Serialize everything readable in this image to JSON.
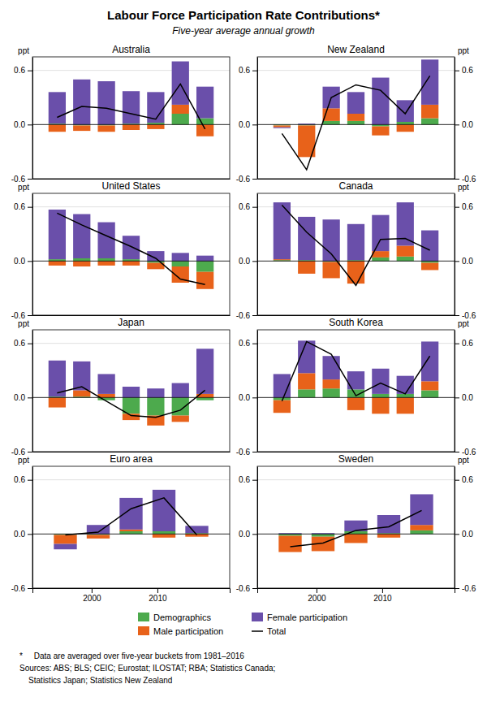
{
  "title": "Labour Force Participation Rate Contributions*",
  "subtitle": "Five-year average annual growth",
  "annotations": [
    "*     Data are averaged over five-year buckets from 1981–2016",
    "Sources: ABS; BLS; CEIC; Eurostat; ILOSTAT; RBA; Statistics Canada;",
    "    Statistics Japan; Statistics New Zealand"
  ],
  "chart_data": [
    {
      "type": "bar",
      "title": "Australia",
      "stacked": true,
      "grid": true,
      "tick_labels": "y",
      "legend": "bottom",
      "ylabel": "ppt",
      "x": [
        1986,
        1991,
        1996,
        2001,
        2006,
        2011,
        2016
      ],
      "xlim": [
        1981,
        2021
      ],
      "xticks": [
        1990,
        2000,
        2010
      ],
      "ylim": [
        -0.6,
        0.75
      ],
      "yticks": [
        -0.6,
        {
          "value": 0,
          "label": "0.0"
        },
        0.6
      ],
      "series": [
        {
          "name": "Demographics",
          "type": "bar",
          "color": "#4daa4d",
          "values": [
            0.01,
            -0.01,
            -0.01,
            0.01,
            0.02,
            0.12,
            0.07
          ]
        },
        {
          "name": "Male participation",
          "type": "bar",
          "color": "#e8621a",
          "values": [
            -0.08,
            -0.06,
            -0.07,
            -0.06,
            -0.05,
            0.1,
            -0.13
          ]
        },
        {
          "name": "Female participation",
          "type": "bar",
          "color": "#6a4faa",
          "values": [
            0.35,
            0.5,
            0.48,
            0.36,
            0.34,
            0.48,
            0.35
          ]
        },
        {
          "name": "Total",
          "type": "line",
          "color": "#000000",
          "values": [
            0.08,
            0.2,
            0.18,
            0.12,
            0.06,
            0.45,
            -0.05
          ]
        }
      ]
    },
    {
      "type": "bar",
      "title": "New Zealand",
      "stacked": true,
      "grid": true,
      "tick_labels": "y",
      "y2label": "ppt",
      "x": [
        1986,
        1991,
        1996,
        2001,
        2006,
        2011,
        2016
      ],
      "xlim": [
        1981,
        2021
      ],
      "xticks": [
        1990,
        2000,
        2010
      ],
      "ylim": [
        -0.6,
        0.75
      ],
      "yticks": [
        -0.6,
        {
          "value": 0,
          "label": "0.0"
        },
        0.6
      ],
      "y2lim": [
        -0.6,
        0.75
      ],
      "y2ticks": [
        -0.6,
        {
          "value": 0,
          "label": "0.0"
        },
        0.6
      ],
      "series": [
        {
          "name": "Demographics",
          "type": "bar",
          "color": "#4daa4d",
          "values": [
            -0.01,
            -0.01,
            0.04,
            0.04,
            -0.02,
            0.03,
            0.07
          ]
        },
        {
          "name": "Male participation",
          "type": "bar",
          "color": "#e8621a",
          "values": [
            -0.02,
            -0.35,
            0.14,
            0.08,
            -0.1,
            -0.08,
            0.15
          ]
        },
        {
          "name": "Female participation",
          "type": "bar",
          "color": "#6a4faa",
          "values": [
            -0.01,
            0.01,
            0.24,
            0.24,
            0.52,
            0.24,
            0.5
          ]
        },
        {
          "name": "Total",
          "type": "line",
          "color": "#000000",
          "values": [
            -0.1,
            -0.5,
            0.3,
            0.44,
            0.38,
            0.12,
            0.54
          ]
        }
      ]
    },
    {
      "type": "bar",
      "title": "United States",
      "stacked": true,
      "grid": true,
      "tick_labels": "y",
      "ylabel": "ppt",
      "x": [
        1986,
        1991,
        1996,
        2001,
        2006,
        2011,
        2016
      ],
      "xlim": [
        1981,
        2021
      ],
      "xticks": [
        1990,
        2000,
        2010
      ],
      "ylim": [
        -0.6,
        0.75
      ],
      "yticks": [
        -0.6,
        {
          "value": 0,
          "label": "0.0"
        },
        0.6
      ],
      "series": [
        {
          "name": "Demographics",
          "type": "bar",
          "color": "#4daa4d",
          "values": [
            0.02,
            0.03,
            0.03,
            0.02,
            -0.02,
            -0.06,
            -0.12
          ]
        },
        {
          "name": "Male participation",
          "type": "bar",
          "color": "#e8621a",
          "values": [
            -0.05,
            -0.06,
            -0.05,
            -0.05,
            -0.07,
            -0.18,
            -0.19
          ]
        },
        {
          "name": "Female participation",
          "type": "bar",
          "color": "#6a4faa",
          "values": [
            0.55,
            0.49,
            0.4,
            0.26,
            0.11,
            0.09,
            0.06
          ]
        },
        {
          "name": "Total",
          "type": "line",
          "color": "#000000",
          "values": [
            0.53,
            0.4,
            0.28,
            0.16,
            0.03,
            -0.2,
            -0.26
          ]
        }
      ]
    },
    {
      "type": "bar",
      "title": "Canada",
      "stacked": true,
      "grid": true,
      "tick_labels": "y",
      "y2label": "ppt",
      "x": [
        1986,
        1991,
        1996,
        2001,
        2006,
        2011,
        2016
      ],
      "xlim": [
        1981,
        2021
      ],
      "xticks": [
        1990,
        2000,
        2010
      ],
      "ylim": [
        -0.6,
        0.75
      ],
      "yticks": [
        -0.6,
        {
          "value": 0,
          "label": "0.0"
        },
        0.6
      ],
      "y2lim": [
        -0.6,
        0.75
      ],
      "y2ticks": [
        -0.6,
        {
          "value": 0,
          "label": "0.0"
        },
        0.6
      ],
      "series": [
        {
          "name": "Demographics",
          "type": "bar",
          "color": "#4daa4d",
          "values": [
            0.01,
            0.01,
            -0.01,
            0.01,
            0.04,
            0.05,
            -0.02
          ]
        },
        {
          "name": "Male participation",
          "type": "bar",
          "color": "#e8621a",
          "values": [
            0.01,
            -0.14,
            -0.18,
            -0.25,
            0.07,
            0.12,
            -0.08
          ]
        },
        {
          "name": "Female participation",
          "type": "bar",
          "color": "#6a4faa",
          "values": [
            0.63,
            0.48,
            0.46,
            0.4,
            0.4,
            0.48,
            0.34
          ]
        },
        {
          "name": "Total",
          "type": "line",
          "color": "#000000",
          "values": [
            0.62,
            0.32,
            0.08,
            -0.27,
            0.24,
            0.25,
            0.12
          ]
        }
      ]
    },
    {
      "type": "bar",
      "title": "Japan",
      "stacked": true,
      "grid": true,
      "tick_labels": "y",
      "ylabel": "ppt",
      "x": [
        1986,
        1991,
        1996,
        2001,
        2006,
        2011,
        2016
      ],
      "xlim": [
        1981,
        2021
      ],
      "xticks": [
        1990,
        2000,
        2010
      ],
      "ylim": [
        -0.6,
        0.75
      ],
      "yticks": [
        -0.6,
        {
          "value": 0,
          "label": "0.0"
        },
        0.6
      ],
      "series": [
        {
          "name": "Demographics",
          "type": "bar",
          "color": "#4daa4d",
          "values": [
            0.01,
            0.01,
            -0.03,
            -0.18,
            -0.2,
            -0.2,
            -0.03
          ]
        },
        {
          "name": "Male participation",
          "type": "bar",
          "color": "#e8621a",
          "values": [
            -0.11,
            0.07,
            0.04,
            -0.07,
            -0.11,
            -0.07,
            0.04
          ]
        },
        {
          "name": "Female participation",
          "type": "bar",
          "color": "#6a4faa",
          "values": [
            0.4,
            0.32,
            0.22,
            0.12,
            0.1,
            0.16,
            0.5
          ]
        },
        {
          "name": "Total",
          "type": "line",
          "color": "#000000",
          "values": [
            0.05,
            0.12,
            -0.04,
            -0.2,
            -0.22,
            -0.14,
            0.08
          ]
        }
      ]
    },
    {
      "type": "bar",
      "title": "South Korea",
      "stacked": true,
      "grid": true,
      "tick_labels": "y",
      "y2label": "ppt",
      "x": [
        1986,
        1991,
        1996,
        2001,
        2006,
        2011,
        2016
      ],
      "xlim": [
        1981,
        2021
      ],
      "xticks": [
        1990,
        2000,
        2010
      ],
      "ylim": [
        -0.6,
        0.75
      ],
      "yticks": [
        -0.6,
        {
          "value": 0,
          "label": "0.0"
        },
        0.6
      ],
      "y2lim": [
        -0.6,
        0.75
      ],
      "y2ticks": [
        -0.6,
        {
          "value": 0,
          "label": "0.0"
        },
        0.6
      ],
      "series": [
        {
          "name": "Demographics",
          "type": "bar",
          "color": "#4daa4d",
          "values": [
            -0.03,
            0.09,
            0.1,
            0.09,
            0.04,
            0.04,
            0.08
          ]
        },
        {
          "name": "Male participation",
          "type": "bar",
          "color": "#e8621a",
          "values": [
            -0.14,
            0.18,
            0.1,
            -0.14,
            -0.18,
            -0.18,
            0.1
          ]
        },
        {
          "name": "Female participation",
          "type": "bar",
          "color": "#6a4faa",
          "values": [
            0.26,
            0.36,
            0.26,
            0.2,
            0.28,
            0.2,
            0.44
          ]
        },
        {
          "name": "Total",
          "type": "line",
          "color": "#000000",
          "values": [
            -0.04,
            0.62,
            0.48,
            0.02,
            0.16,
            0.04,
            0.46
          ]
        }
      ]
    },
    {
      "type": "bar",
      "title": "Euro area",
      "stacked": true,
      "grid": true,
      "ylabel": "ppt",
      "x": [
        1996,
        2001,
        2006,
        2011,
        2016
      ],
      "xlim": [
        1991,
        2021
      ],
      "xticks": [
        2000,
        2010
      ],
      "ylim": [
        -0.6,
        0.75
      ],
      "yticks": [
        -0.6,
        {
          "value": 0,
          "label": "0.0"
        },
        0.6
      ],
      "series": [
        {
          "name": "Demographics",
          "type": "bar",
          "color": "#4daa4d",
          "values": [
            -0.01,
            -0.01,
            0.03,
            0.03,
            0.01
          ]
        },
        {
          "name": "Male participation",
          "type": "bar",
          "color": "#e8621a",
          "values": [
            -0.1,
            -0.04,
            0.02,
            -0.04,
            -0.03
          ]
        },
        {
          "name": "Female participation",
          "type": "bar",
          "color": "#6a4faa",
          "values": [
            -0.06,
            0.1,
            0.35,
            0.46,
            0.08
          ]
        },
        {
          "name": "Total",
          "type": "line",
          "color": "#000000",
          "values": [
            -0.01,
            0.02,
            0.28,
            0.4,
            -0.01
          ]
        }
      ]
    },
    {
      "type": "bar",
      "title": "Sweden",
      "stacked": true,
      "grid": true,
      "y2label": "ppt",
      "x": [
        1996,
        2001,
        2006,
        2011,
        2016
      ],
      "xlim": [
        1991,
        2021
      ],
      "xticks": [
        2000,
        2010
      ],
      "ylim": [
        -0.6,
        0.75
      ],
      "yticks": [
        -0.6,
        {
          "value": 0,
          "label": "0.0"
        },
        0.6
      ],
      "y2lim": [
        -0.6,
        0.75
      ],
      "y2ticks": [
        -0.6,
        {
          "value": 0,
          "label": "0.0"
        },
        0.6
      ],
      "series": [
        {
          "name": "Demographics",
          "type": "bar",
          "color": "#4daa4d",
          "values": [
            -0.02,
            -0.03,
            0.03,
            0.01,
            0.04
          ]
        },
        {
          "name": "Male participation",
          "type": "bar",
          "color": "#e8621a",
          "values": [
            -0.18,
            -0.16,
            -0.1,
            -0.04,
            0.06
          ]
        },
        {
          "name": "Female participation",
          "type": "bar",
          "color": "#6a4faa",
          "values": [
            0.01,
            0.01,
            0.12,
            0.2,
            0.34
          ]
        },
        {
          "name": "Total",
          "type": "line",
          "color": "#000000",
          "values": [
            -0.14,
            -0.1,
            0.04,
            0.08,
            0.26
          ]
        }
      ]
    }
  ]
}
